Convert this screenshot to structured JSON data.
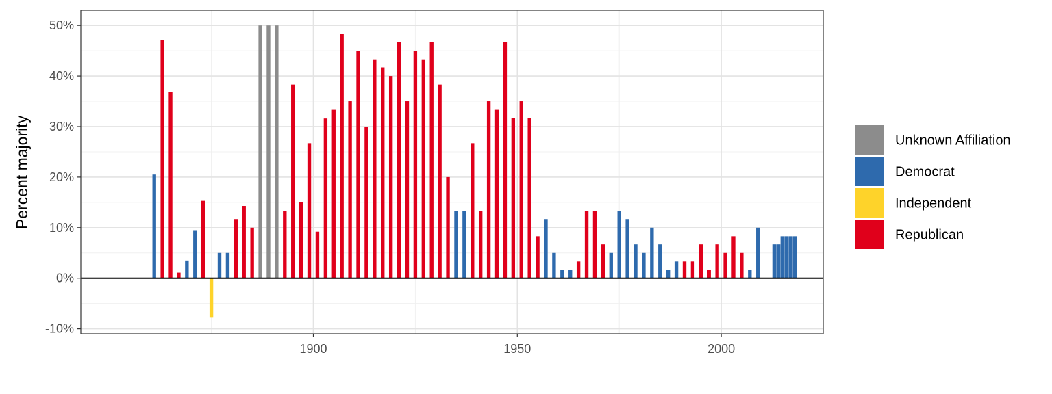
{
  "chart_data": {
    "type": "bar",
    "title": "",
    "xlabel": "",
    "ylabel": "Percent majority",
    "xlim": [
      1843,
      2025
    ],
    "ylim": [
      -11,
      53
    ],
    "x_ticks": [
      1900,
      1950,
      2000
    ],
    "y_ticks": [
      -10,
      0,
      10,
      20,
      30,
      40,
      50
    ],
    "y_tick_labels": [
      "-10%",
      "0%",
      "10%",
      "20%",
      "30%",
      "40%",
      "50%"
    ],
    "grid": true,
    "legend_position": "right",
    "series": [
      {
        "name": "Unknown Affiliation",
        "color": "#8c8c8c"
      },
      {
        "name": "Democrat",
        "color": "#2e6aad"
      },
      {
        "name": "Independent",
        "color": "#fed32a"
      },
      {
        "name": "Republican",
        "color": "#e0001b"
      }
    ],
    "bars": [
      {
        "year": 1861,
        "value": 20.5,
        "party": "Democrat"
      },
      {
        "year": 1863,
        "value": 47.1,
        "party": "Republican"
      },
      {
        "year": 1865,
        "value": 36.8,
        "party": "Republican"
      },
      {
        "year": 1867,
        "value": 1.1,
        "party": "Republican"
      },
      {
        "year": 1869,
        "value": 3.5,
        "party": "Democrat"
      },
      {
        "year": 1871,
        "value": 9.5,
        "party": "Democrat"
      },
      {
        "year": 1873,
        "value": 15.3,
        "party": "Republican"
      },
      {
        "year": 1875,
        "value": -7.8,
        "party": "Independent"
      },
      {
        "year": 1877,
        "value": 5.0,
        "party": "Democrat"
      },
      {
        "year": 1879,
        "value": 5.0,
        "party": "Democrat"
      },
      {
        "year": 1881,
        "value": 11.7,
        "party": "Republican"
      },
      {
        "year": 1883,
        "value": 14.3,
        "party": "Republican"
      },
      {
        "year": 1885,
        "value": 10.0,
        "party": "Republican"
      },
      {
        "year": 1887,
        "value": 50.0,
        "party": "Unknown Affiliation"
      },
      {
        "year": 1889,
        "value": 50.0,
        "party": "Unknown Affiliation"
      },
      {
        "year": 1891,
        "value": 50.0,
        "party": "Unknown Affiliation"
      },
      {
        "year": 1893,
        "value": 13.3,
        "party": "Republican"
      },
      {
        "year": 1895,
        "value": 38.3,
        "party": "Republican"
      },
      {
        "year": 1897,
        "value": 15.0,
        "party": "Republican"
      },
      {
        "year": 1899,
        "value": 26.7,
        "party": "Republican"
      },
      {
        "year": 1901,
        "value": 9.2,
        "party": "Republican"
      },
      {
        "year": 1903,
        "value": 31.6,
        "party": "Republican"
      },
      {
        "year": 1905,
        "value": 33.3,
        "party": "Republican"
      },
      {
        "year": 1907,
        "value": 48.3,
        "party": "Republican"
      },
      {
        "year": 1909,
        "value": 35.0,
        "party": "Republican"
      },
      {
        "year": 1911,
        "value": 45.0,
        "party": "Republican"
      },
      {
        "year": 1913,
        "value": 30.0,
        "party": "Republican"
      },
      {
        "year": 1915,
        "value": 43.3,
        "party": "Republican"
      },
      {
        "year": 1917,
        "value": 41.7,
        "party": "Republican"
      },
      {
        "year": 1919,
        "value": 40.0,
        "party": "Republican"
      },
      {
        "year": 1921,
        "value": 46.7,
        "party": "Republican"
      },
      {
        "year": 1923,
        "value": 35.0,
        "party": "Republican"
      },
      {
        "year": 1925,
        "value": 45.0,
        "party": "Republican"
      },
      {
        "year": 1927,
        "value": 43.3,
        "party": "Republican"
      },
      {
        "year": 1929,
        "value": 46.7,
        "party": "Republican"
      },
      {
        "year": 1931,
        "value": 38.3,
        "party": "Republican"
      },
      {
        "year": 1933,
        "value": 20.0,
        "party": "Republican"
      },
      {
        "year": 1935,
        "value": 13.3,
        "party": "Democrat"
      },
      {
        "year": 1937,
        "value": 13.3,
        "party": "Democrat"
      },
      {
        "year": 1939,
        "value": 26.7,
        "party": "Republican"
      },
      {
        "year": 1941,
        "value": 13.3,
        "party": "Republican"
      },
      {
        "year": 1943,
        "value": 35.0,
        "party": "Republican"
      },
      {
        "year": 1945,
        "value": 33.3,
        "party": "Republican"
      },
      {
        "year": 1947,
        "value": 46.7,
        "party": "Republican"
      },
      {
        "year": 1949,
        "value": 31.7,
        "party": "Republican"
      },
      {
        "year": 1951,
        "value": 35.0,
        "party": "Republican"
      },
      {
        "year": 1953,
        "value": 31.7,
        "party": "Republican"
      },
      {
        "year": 1955,
        "value": 8.3,
        "party": "Republican"
      },
      {
        "year": 1957,
        "value": 11.7,
        "party": "Democrat"
      },
      {
        "year": 1959,
        "value": 5.0,
        "party": "Democrat"
      },
      {
        "year": 1961,
        "value": 1.7,
        "party": "Democrat"
      },
      {
        "year": 1963,
        "value": 1.7,
        "party": "Democrat"
      },
      {
        "year": 1965,
        "value": 3.3,
        "party": "Republican"
      },
      {
        "year": 1967,
        "value": 13.3,
        "party": "Republican"
      },
      {
        "year": 1969,
        "value": 13.3,
        "party": "Republican"
      },
      {
        "year": 1971,
        "value": 6.7,
        "party": "Republican"
      },
      {
        "year": 1973,
        "value": 5.0,
        "party": "Democrat"
      },
      {
        "year": 1975,
        "value": 13.3,
        "party": "Democrat"
      },
      {
        "year": 1977,
        "value": 11.7,
        "party": "Democrat"
      },
      {
        "year": 1979,
        "value": 6.7,
        "party": "Democrat"
      },
      {
        "year": 1981,
        "value": 5.0,
        "party": "Democrat"
      },
      {
        "year": 1983,
        "value": 10.0,
        "party": "Democrat"
      },
      {
        "year": 1985,
        "value": 6.7,
        "party": "Democrat"
      },
      {
        "year": 1987,
        "value": 1.7,
        "party": "Democrat"
      },
      {
        "year": 1989,
        "value": 3.3,
        "party": "Democrat"
      },
      {
        "year": 1991,
        "value": 3.3,
        "party": "Republican"
      },
      {
        "year": 1993,
        "value": 3.3,
        "party": "Republican"
      },
      {
        "year": 1995,
        "value": 6.7,
        "party": "Republican"
      },
      {
        "year": 1997,
        "value": 1.7,
        "party": "Republican"
      },
      {
        "year": 1999,
        "value": 6.7,
        "party": "Republican"
      },
      {
        "year": 2001,
        "value": 5.0,
        "party": "Republican"
      },
      {
        "year": 2003,
        "value": 8.3,
        "party": "Republican"
      },
      {
        "year": 2005,
        "value": 5.0,
        "party": "Republican"
      },
      {
        "year": 2007,
        "value": 1.7,
        "party": "Democrat"
      },
      {
        "year": 2009,
        "value": 10.0,
        "party": "Democrat"
      },
      {
        "year": 2013,
        "value": 6.7,
        "party": "Democrat"
      },
      {
        "year": 2014,
        "value": 6.7,
        "party": "Democrat"
      },
      {
        "year": 2015,
        "value": 8.3,
        "party": "Democrat"
      },
      {
        "year": 2016,
        "value": 8.3,
        "party": "Democrat"
      },
      {
        "year": 2017,
        "value": 8.3,
        "party": "Democrat"
      },
      {
        "year": 2018,
        "value": 8.3,
        "party": "Democrat"
      }
    ]
  }
}
